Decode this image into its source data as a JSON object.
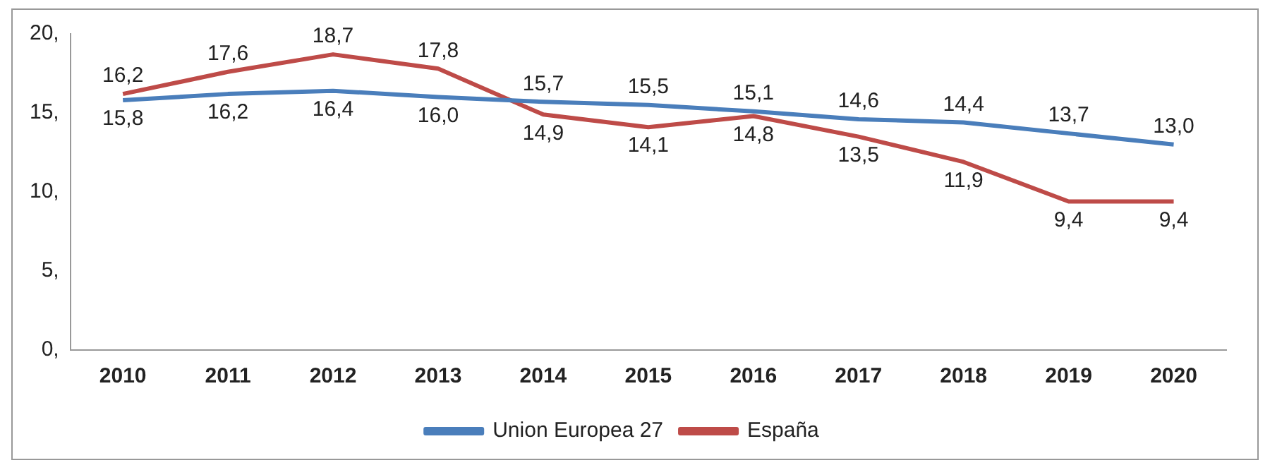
{
  "chart_data": {
    "type": "line",
    "categories": [
      "2010",
      "2011",
      "2012",
      "2013",
      "2014",
      "2015",
      "2016",
      "2017",
      "2018",
      "2019",
      "2020"
    ],
    "series": [
      {
        "name": "Union Europea 27",
        "color": "#4a7ebb",
        "values": [
          15.8,
          16.2,
          16.4,
          16.0,
          15.7,
          15.5,
          15.1,
          14.6,
          14.4,
          13.7,
          13.0
        ],
        "value_labels": [
          "15,8",
          "16,2",
          "16,4",
          "16,0",
          "15,7",
          "15,5",
          "15,1",
          "14,6",
          "14,4",
          "13,7",
          "13,0"
        ]
      },
      {
        "name": "España",
        "color": "#be4b48",
        "values": [
          16.2,
          17.6,
          18.7,
          17.8,
          14.9,
          14.1,
          14.8,
          13.5,
          11.9,
          9.4,
          9.4
        ],
        "value_labels": [
          "16,2",
          "17,6",
          "18,7",
          "17,8",
          "14,9",
          "14,1",
          "14,8",
          "13,5",
          "11,9",
          "9,4",
          "9,4"
        ]
      }
    ],
    "ylim": [
      0,
      20
    ],
    "yticks": [
      {
        "value": 0,
        "label": "0,"
      },
      {
        "value": 5,
        "label": "5,"
      },
      {
        "value": 10,
        "label": "10,"
      },
      {
        "value": 15,
        "label": "15,"
      },
      {
        "value": 20,
        "label": "20,"
      }
    ],
    "grid": false,
    "legend": "bottom",
    "marker": "none",
    "line_style": "solid"
  }
}
